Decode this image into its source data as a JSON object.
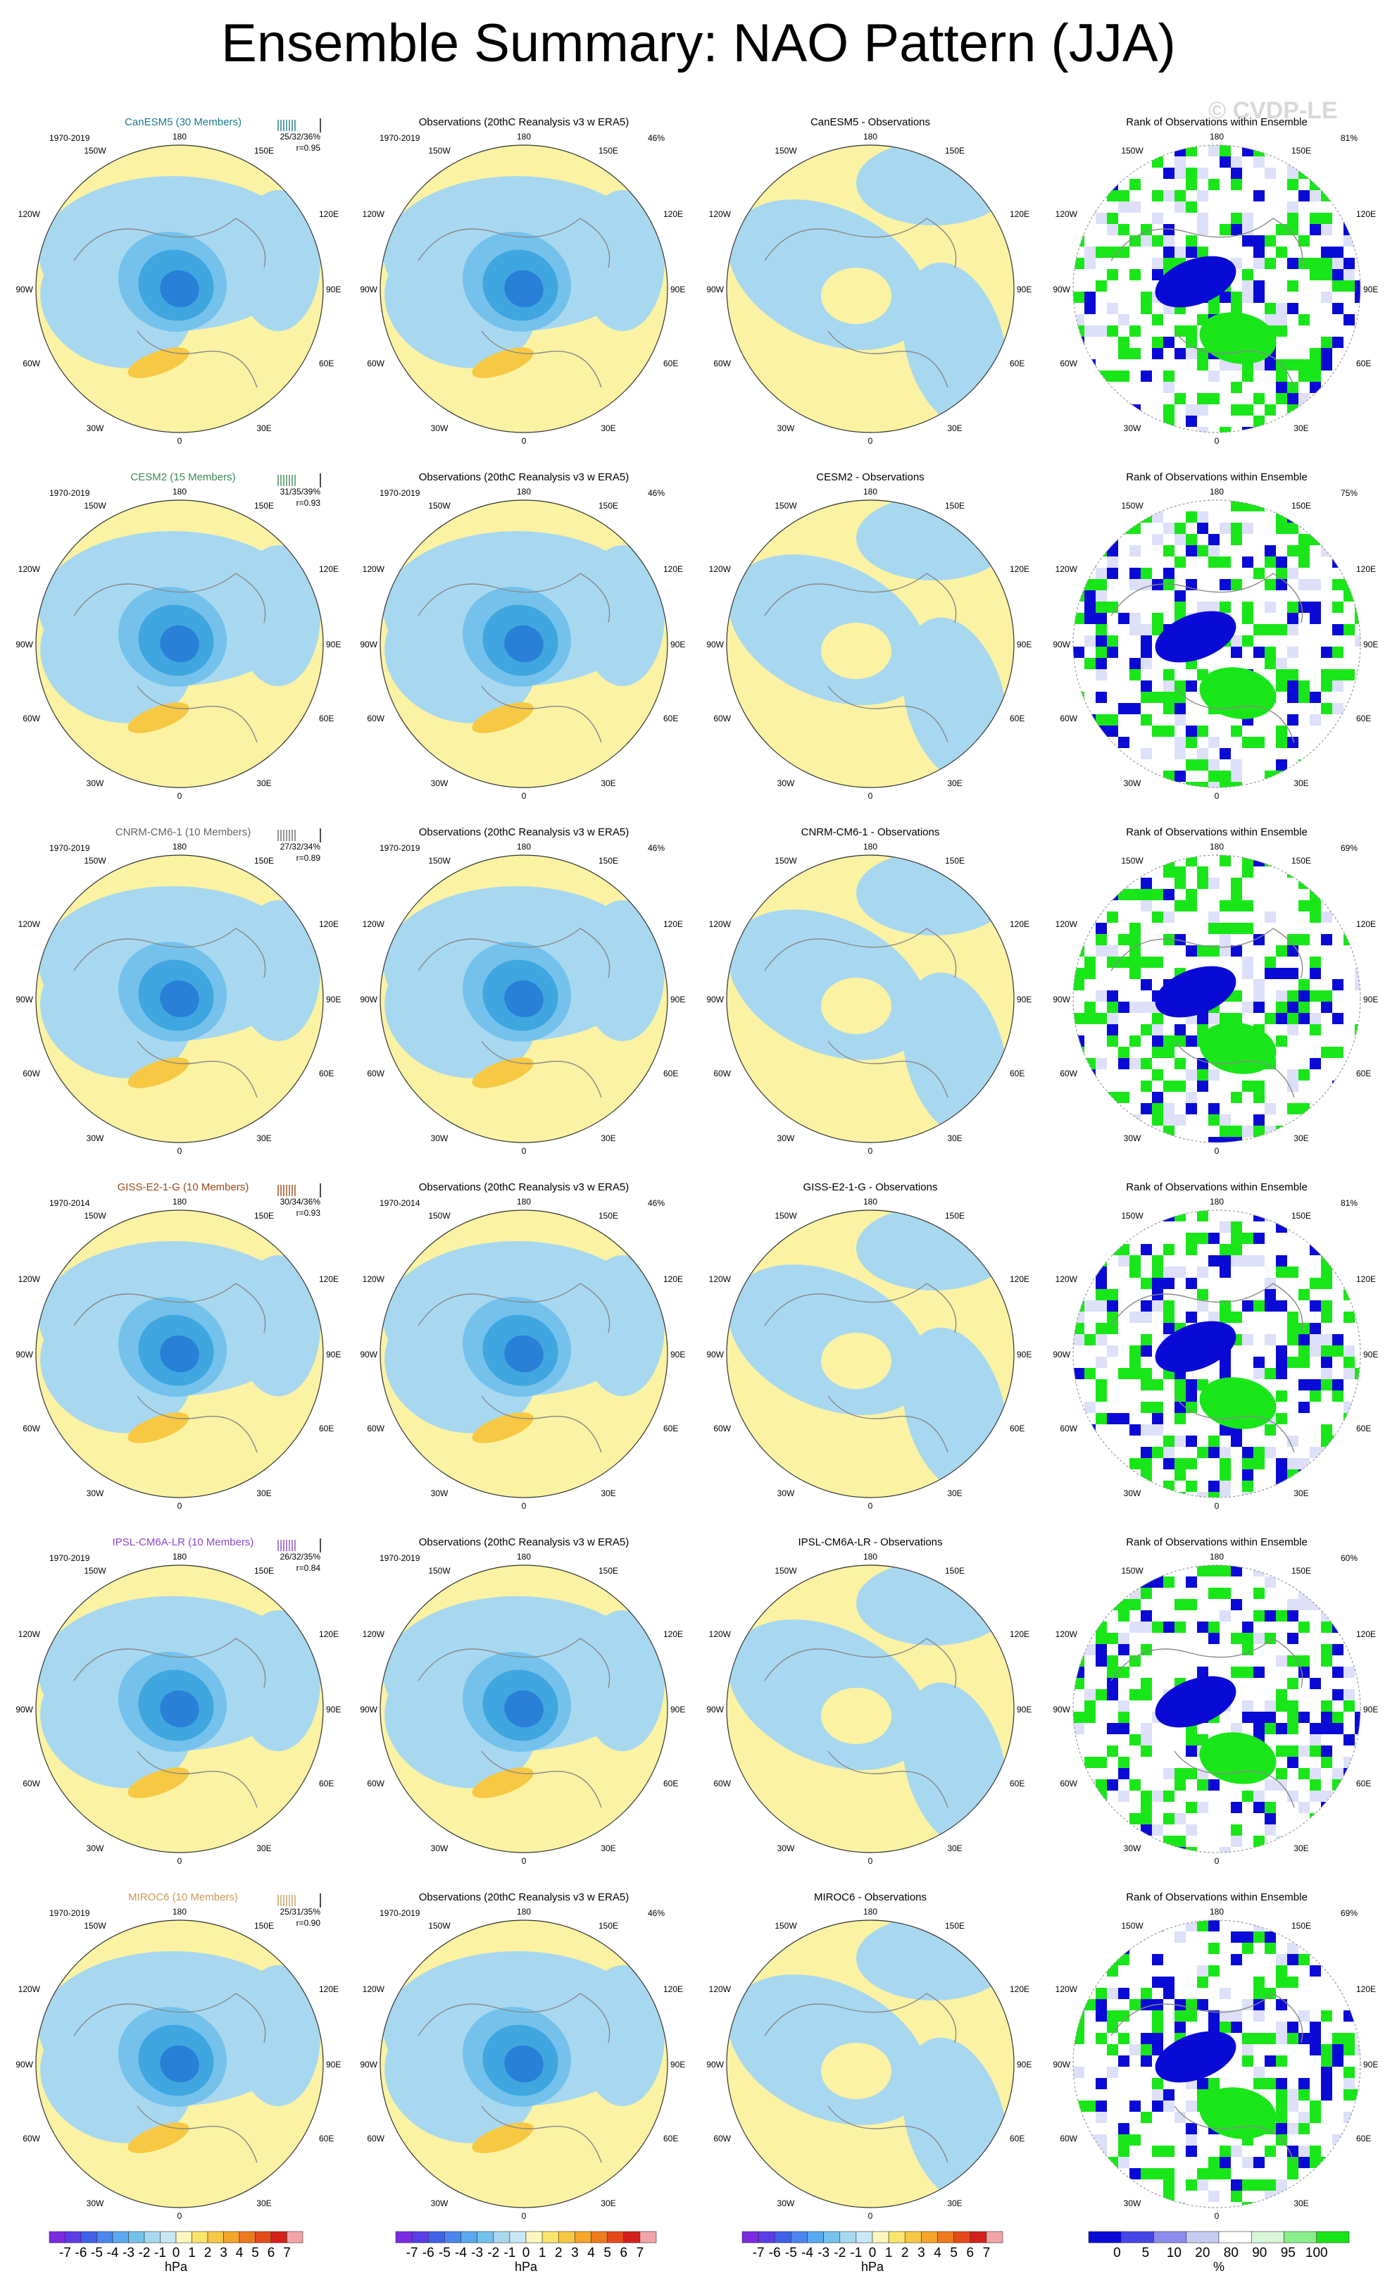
{
  "page": {
    "title": "Ensemble Summary: NAO Pattern (JJA)",
    "watermark": "© CVDP-LE"
  },
  "labels": {
    "lon": {
      "top": "180",
      "ul": "150W",
      "ur": "150E",
      "l1": "120W",
      "r1": "120E",
      "l2": "90W",
      "r2": "90E",
      "l3": "60W",
      "r3": "60E",
      "bl": "30W",
      "br": "30E",
      "bottom": "0"
    }
  },
  "colors": {
    "ocean_neg": "#a8d8f0",
    "mid_neg": "#74c2ec",
    "strong_neg": "#3fa6e0",
    "deep_neg": "#2b7fd6",
    "pos": "#fbf3a3",
    "pos_mid": "#f7c843",
    "grid_blue": "#0a0ad6",
    "grid_green": "#19e619",
    "grid_light": "#dde0f8",
    "coast": "#888888"
  },
  "rows": [
    {
      "model": "CanESM5 (30 Members)",
      "model_color": "#1c7a8c",
      "period": "1970-2019",
      "stats": "25/32/36%",
      "corr": "r=0.95",
      "obs_period": "1970-2019",
      "obs_pct": "46%",
      "diff": "CanESM5 - Observations",
      "rank_pct": "81%"
    },
    {
      "model": "CESM2 (15 Members)",
      "model_color": "#3e8a57",
      "period": "1970-2019",
      "stats": "31/35/39%",
      "corr": "r=0.93",
      "obs_period": "1970-2019",
      "obs_pct": "46%",
      "diff": "CESM2 - Observations",
      "rank_pct": "75%"
    },
    {
      "model": "CNRM-CM6-1 (10 Members)",
      "model_color": "#666666",
      "period": "1970-2019",
      "stats": "27/32/34%",
      "corr": "r=0.89",
      "obs_period": "1970-2019",
      "obs_pct": "46%",
      "diff": "CNRM-CM6-1 - Observations",
      "rank_pct": "69%"
    },
    {
      "model": "GISS-E2-1-G (10 Members)",
      "model_color": "#9a4a18",
      "period": "1970-2014",
      "stats": "30/34/36%",
      "corr": "r=0.93",
      "obs_period": "1970-2014",
      "obs_pct": "46%",
      "diff": "GISS-E2-1-G - Observations",
      "rank_pct": "81%"
    },
    {
      "model": "IPSL-CM6A-LR (10 Members)",
      "model_color": "#8a48c8",
      "period": "1970-2019",
      "stats": "26/32/35%",
      "corr": "r=0.84",
      "obs_period": "1970-2019",
      "obs_pct": "",
      "diff": "IPSL-CM6A-LR - Observations",
      "rank_pct": "60%"
    },
    {
      "model": "MIROC6 (10 Members)",
      "model_color": "#c89a5a",
      "period": "1970-2019",
      "stats": "25/31/35%",
      "corr": "r=0.90",
      "obs_period": "1970-2019",
      "obs_pct": "46%",
      "diff": "MIROC6 - Observations",
      "rank_pct": "69%"
    }
  ],
  "obs_title": "Observations (20thC Reanalysis v3 w ERA5)",
  "rank_title": "Rank of Observations within Ensemble",
  "colorbars": {
    "hpa": {
      "labels": [
        "-7",
        "-6",
        "-5",
        "-4",
        "-3",
        "-2",
        "-1",
        "0",
        "1",
        "2",
        "3",
        "4",
        "5",
        "6",
        "7"
      ],
      "unit": "hPa",
      "colors": [
        "#7b2be0",
        "#5c3ce8",
        "#4060ea",
        "#4a86ee",
        "#5aa8f0",
        "#74c2ec",
        "#a8d8f0",
        "#c8e8f8",
        "#fdf7bf",
        "#fbe66c",
        "#f7c843",
        "#f4a52a",
        "#ee7a1e",
        "#e44a1a",
        "#d4201a",
        "#f2a4a8"
      ]
    },
    "rank": {
      "labels": [
        "0",
        "5",
        "10",
        "20",
        "80",
        "90",
        "95",
        "100"
      ],
      "unit": "%",
      "colors": [
        "#0a0ad6",
        "#4646e6",
        "#8c8cee",
        "#c8ccf4",
        "#ffffff",
        "#d8f6d8",
        "#8aee8a",
        "#19e619"
      ]
    }
  }
}
